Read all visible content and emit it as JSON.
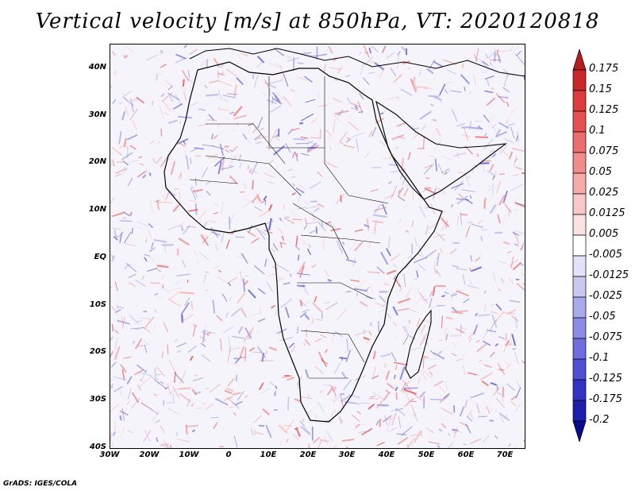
{
  "title": "Vertical velocity [m/s] at 850hPa, VT: 2020120818",
  "credit": "GrADS: IGES/COLA",
  "map": {
    "region": "Africa",
    "lon_range": [
      -30,
      75
    ],
    "lat_range": [
      -40,
      45
    ],
    "lat_labels": [
      "40N",
      "30N",
      "20N",
      "10N",
      "EQ",
      "10S",
      "20S",
      "30S",
      "40S"
    ],
    "lon_labels": [
      "30W",
      "20W",
      "10W",
      "0",
      "10E",
      "20E",
      "30E",
      "40E",
      "50E",
      "60E",
      "70E"
    ]
  },
  "colorbar": {
    "labels": [
      "0.175",
      "0.15",
      "0.125",
      "0.1",
      "0.075",
      "0.05",
      "0.025",
      "0.0125",
      "0.005",
      "-0.005",
      "-0.0125",
      "-0.025",
      "-0.05",
      "-0.075",
      "-0.1",
      "-0.125",
      "-0.175",
      "-0.2"
    ],
    "colors": [
      "#b41e1e",
      "#c82828",
      "#dc3c3c",
      "#e65050",
      "#eb6e6e",
      "#f08c8c",
      "#f5aaaa",
      "#f8c8c8",
      "#fbe2e2",
      "#ffffff",
      "#e2e2f8",
      "#c8c8f0",
      "#aaaaeb",
      "#8c8ce6",
      "#6e6edc",
      "#5050d2",
      "#3232c3",
      "#1e1eaa",
      "#0a0a8c"
    ]
  },
  "colors": {
    "land_tint": "#f1eef8",
    "ocean_tint": "#f7f5fb",
    "border": "#000000"
  }
}
